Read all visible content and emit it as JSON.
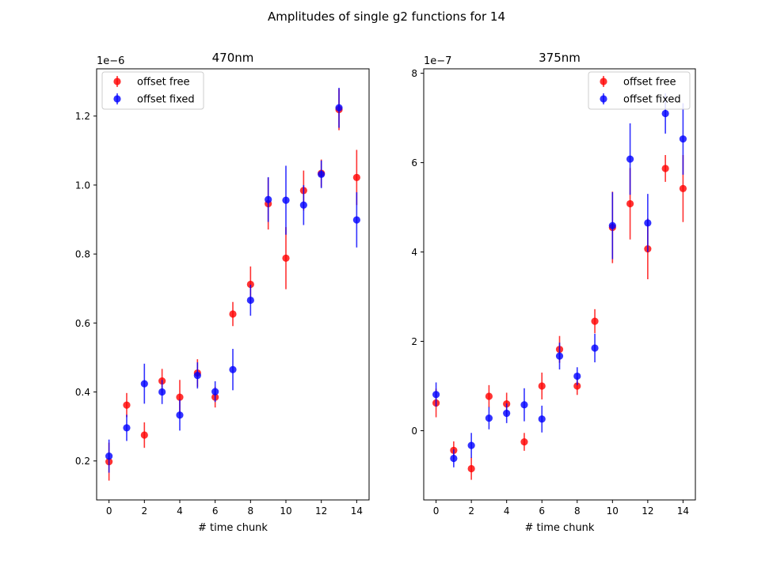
{
  "figure": {
    "suptitle": "Amplitudes of single g2 functions for 14"
  },
  "colors": {
    "series_a": "#ff0000",
    "series_b": "#0000ff"
  },
  "chart_data": [
    {
      "type": "scatter",
      "title": "470nm",
      "xlabel": "# time chunk",
      "ylabel": "",
      "offset_text": "1e−6",
      "xlim": [
        -0.7,
        14.7
      ],
      "ylim": [
        0.087,
        1.337
      ],
      "xticks": [
        0,
        2,
        4,
        6,
        8,
        10,
        12,
        14
      ],
      "xtick_labels": [
        "0",
        "2",
        "4",
        "6",
        "8",
        "10",
        "12",
        "14"
      ],
      "yticks": [
        0.2,
        0.4,
        0.6,
        0.8,
        1.0,
        1.2
      ],
      "ytick_labels": [
        "0.2",
        "0.4",
        "0.6",
        "0.8",
        "1.0",
        "1.2"
      ],
      "legend_position": "top-left",
      "series": [
        {
          "name": "offset free",
          "color": "#ff0000",
          "x": [
            0,
            1,
            2,
            3,
            4,
            5,
            6,
            7,
            8,
            9,
            10,
            11,
            12,
            13,
            14
          ],
          "y": [
            0.198,
            0.362,
            0.275,
            0.432,
            0.385,
            0.455,
            0.385,
            0.626,
            0.712,
            0.946,
            0.788,
            0.984,
            1.034,
            1.219,
            1.022
          ],
          "err": [
            0.055,
            0.035,
            0.037,
            0.035,
            0.05,
            0.04,
            0.03,
            0.035,
            0.052,
            0.075,
            0.09,
            0.058,
            0.04,
            0.06,
            0.08
          ]
        },
        {
          "name": "offset fixed",
          "color": "#0000ff",
          "x": [
            0,
            1,
            2,
            3,
            4,
            5,
            6,
            7,
            8,
            9,
            10,
            11,
            12,
            13,
            14
          ],
          "y": [
            0.214,
            0.296,
            0.424,
            0.4,
            0.333,
            0.448,
            0.401,
            0.465,
            0.666,
            0.958,
            0.956,
            0.942,
            1.031,
            1.224,
            0.899
          ],
          "err": [
            0.048,
            0.038,
            0.058,
            0.035,
            0.045,
            0.038,
            0.03,
            0.06,
            0.045,
            0.065,
            0.1,
            0.058,
            0.04,
            0.058,
            0.08
          ]
        }
      ]
    },
    {
      "type": "scatter",
      "title": "375nm",
      "xlabel": "# time chunk",
      "ylabel": "",
      "offset_text": "1e−7",
      "xlim": [
        -0.7,
        14.7
      ],
      "ylim": [
        -1.55,
        8.1
      ],
      "xticks": [
        0,
        2,
        4,
        6,
        8,
        10,
        12,
        14
      ],
      "xtick_labels": [
        "0",
        "2",
        "4",
        "6",
        "8",
        "10",
        "12",
        "14"
      ],
      "yticks": [
        0,
        2,
        4,
        6,
        8
      ],
      "ytick_labels": [
        "0",
        "2",
        "4",
        "6",
        "8"
      ],
      "legend_position": "top-right",
      "series": [
        {
          "name": "offset free",
          "color": "#ff0000",
          "x": [
            0,
            1,
            2,
            3,
            4,
            5,
            6,
            7,
            8,
            9,
            10,
            11,
            12,
            13,
            14
          ],
          "y": [
            0.62,
            -0.44,
            -0.85,
            0.77,
            0.6,
            -0.25,
            1.0,
            1.82,
            1.0,
            2.45,
            4.55,
            5.08,
            4.07,
            5.87,
            5.42
          ],
          "err": [
            0.32,
            0.2,
            0.25,
            0.25,
            0.25,
            0.2,
            0.3,
            0.3,
            0.2,
            0.27,
            0.8,
            0.8,
            0.68,
            0.3,
            0.75
          ]
        },
        {
          "name": "offset fixed",
          "color": "#0000ff",
          "x": [
            0,
            1,
            2,
            3,
            4,
            5,
            6,
            7,
            8,
            9,
            10,
            11,
            12,
            13,
            14
          ],
          "y": [
            0.81,
            -0.62,
            -0.33,
            0.28,
            0.39,
            0.58,
            0.26,
            1.67,
            1.22,
            1.85,
            4.59,
            6.08,
            4.65,
            7.1,
            6.53
          ],
          "err": [
            0.27,
            0.2,
            0.28,
            0.25,
            0.22,
            0.37,
            0.3,
            0.3,
            0.2,
            0.32,
            0.75,
            0.8,
            0.65,
            0.45,
            0.8
          ]
        }
      ]
    }
  ]
}
